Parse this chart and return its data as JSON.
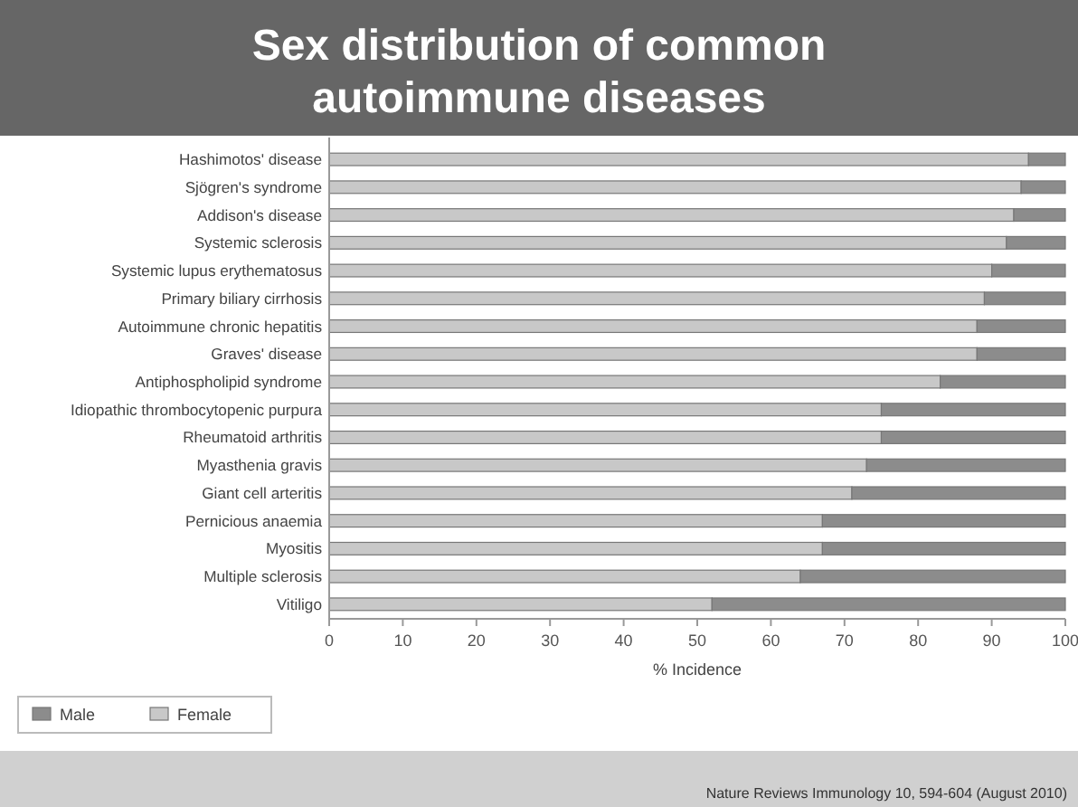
{
  "chart_data": {
    "type": "bar",
    "orientation": "horizontal",
    "stacked": true,
    "title": "Sex distribution of common autoimmune diseases",
    "xlabel": "% Incidence",
    "categories": [
      "Hashimotos' disease",
      "Sjögren's syndrome",
      "Addison's disease",
      "Systemic sclerosis",
      "Systemic lupus erythematosus",
      "Primary biliary cirrhosis",
      "Autoimmune chronic hepatitis",
      "Graves' disease",
      "Antiphospholipid syndrome",
      "Idiopathic thrombocytopenic purpura",
      "Rheumatoid arthritis",
      "Myasthenia gravis",
      "Giant cell arteritis",
      "Pernicious anaemia",
      "Myositis",
      "Multiple sclerosis",
      "Vitiligo"
    ],
    "series": [
      {
        "name": "Female",
        "color": "#c8c8c8",
        "values": [
          95,
          94,
          93,
          92,
          90,
          89,
          88,
          88,
          83,
          75,
          75,
          73,
          71,
          67,
          67,
          64,
          52
        ]
      },
      {
        "name": "Male",
        "color": "#8c8c8c",
        "values": [
          5,
          6,
          7,
          8,
          10,
          11,
          12,
          12,
          17,
          25,
          25,
          27,
          29,
          33,
          33,
          36,
          48
        ]
      }
    ],
    "xlim": [
      0,
      100
    ],
    "xticks": [
      0,
      10,
      20,
      30,
      40,
      50,
      60,
      70,
      80,
      90,
      100
    ],
    "grid": false,
    "legend": "bottom left",
    "annotations": [
      "Nature Reviews Immunology 10, 594-604 (August 2010)"
    ]
  }
}
